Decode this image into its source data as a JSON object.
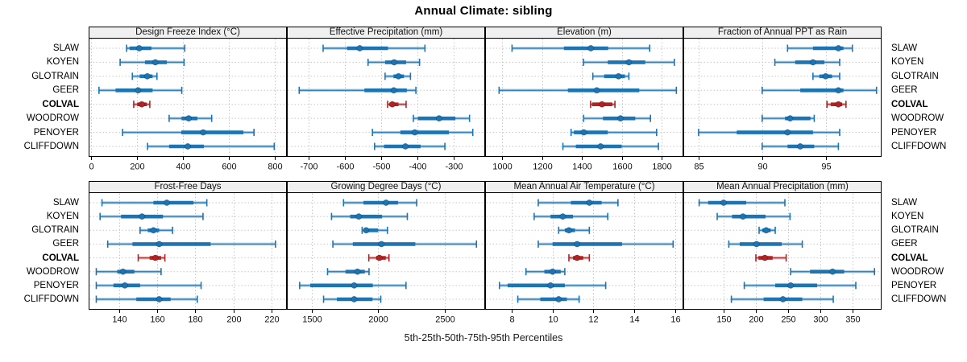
{
  "title": "Annual Climate: sibling",
  "caption": "5th-25th-50th-75th-95th Percentiles",
  "sites": [
    "SLAW",
    "KOYEN",
    "GLOTRAIN",
    "GEER",
    "COLVAL",
    "WOODROW",
    "PENOYER",
    "CLIFFDOWN"
  ],
  "highlight_site": "COLVAL",
  "percentile_labels": [
    "5th",
    "25th",
    "50th",
    "75th",
    "95th"
  ],
  "colors": {
    "series": "#1b74b4",
    "highlight": "#b22222",
    "strip_bg": "#f0f0f0",
    "grid": "#c6c6c6",
    "border": "#000000",
    "text": "#111111"
  },
  "chart_data": {
    "type": "dotplot-interval",
    "layout": {
      "rows": 2,
      "cols": 4
    },
    "note": "values are [p5,p25,p50,p75,p95] per site",
    "panels": [
      {
        "title": "Design Freeze Index (°C)",
        "row": 0,
        "col": 0,
        "xlim": [
          -10,
          852
        ],
        "ticks": [
          0,
          200,
          400,
          600,
          800
        ],
        "series": [
          {
            "site": "SLAW",
            "values": [
              155,
              168,
              210,
              263,
              408
            ]
          },
          {
            "site": "KOYEN",
            "values": [
              127,
              235,
              280,
              330,
              405
            ]
          },
          {
            "site": "GLOTRAIN",
            "values": [
              180,
              212,
              245,
              268,
              287
            ]
          },
          {
            "site": "GEER",
            "values": [
              35,
              107,
              205,
              268,
              395
            ]
          },
          {
            "site": "COLVAL",
            "values": [
              186,
              201,
              221,
              243,
              256
            ]
          },
          {
            "site": "WOODROW",
            "values": [
              340,
              394,
              425,
              463,
              525
            ]
          },
          {
            "site": "PENOYER",
            "values": [
              137,
              393,
              488,
              663,
              709
            ]
          },
          {
            "site": "CLIFFDOWN",
            "values": [
              246,
              340,
              421,
              491,
              797
            ]
          }
        ]
      },
      {
        "title": "Effective Precipitation (mm)",
        "row": 0,
        "col": 1,
        "xlim": [
          -760,
          -213
        ],
        "ticks": [
          -700,
          -600,
          -500,
          -400,
          -300
        ],
        "series": [
          {
            "site": "SLAW",
            "values": [
              -660,
              -594,
              -559,
              -481,
              -379
            ]
          },
          {
            "site": "KOYEN",
            "values": [
              -536,
              -489,
              -464,
              -431,
              -394
            ]
          },
          {
            "site": "GLOTRAIN",
            "values": [
              -489,
              -466,
              -452,
              -437,
              -419
            ]
          },
          {
            "site": "GEER",
            "values": [
              -726,
              -546,
              -465,
              -429,
              -404
            ]
          },
          {
            "site": "COLVAL",
            "values": [
              -482,
              -477,
              -469,
              -452,
              -431
            ]
          },
          {
            "site": "WOODROW",
            "values": [
              -411,
              -398,
              -340,
              -295,
              -256
            ]
          },
          {
            "site": "PENOYER",
            "values": [
              -524,
              -447,
              -407,
              -313,
              -247
            ]
          },
          {
            "site": "CLIFFDOWN",
            "values": [
              -518,
              -492,
              -433,
              -391,
              -324
            ]
          }
        ]
      },
      {
        "title": "Elevation (m)",
        "row": 0,
        "col": 2,
        "xlim": [
          915,
          1909
        ],
        "ticks": [
          1000,
          1200,
          1400,
          1600,
          1800
        ],
        "series": [
          {
            "site": "SLAW",
            "values": [
              1050,
              1310,
              1445,
              1532,
              1740
            ]
          },
          {
            "site": "KOYEN",
            "values": [
              1408,
              1530,
              1636,
              1718,
              1864
            ]
          },
          {
            "site": "GLOTRAIN",
            "values": [
              1455,
              1512,
              1584,
              1616,
              1636
            ]
          },
          {
            "site": "GEER",
            "values": [
              985,
              1330,
              1475,
              1688,
              1874
            ]
          },
          {
            "site": "COLVAL",
            "values": [
              1444,
              1452,
              1501,
              1553,
              1566
            ]
          },
          {
            "site": "WOODROW",
            "values": [
              1409,
              1506,
              1594,
              1668,
              1744
            ]
          },
          {
            "site": "PENOYER",
            "values": [
              1346,
              1360,
              1410,
              1530,
              1775
            ]
          },
          {
            "site": "CLIFFDOWN",
            "values": [
              1305,
              1370,
              1494,
              1600,
              1784
            ]
          }
        ]
      },
      {
        "title": "Fraction of Annual PPT as Rain",
        "row": 0,
        "col": 3,
        "xlim": [
          83.8,
          99.4
        ],
        "ticks": [
          85,
          90,
          95
        ],
        "series": [
          {
            "site": "SLAW",
            "values": [
              92,
              94,
              96,
              96.4,
              97.1
            ]
          },
          {
            "site": "KOYEN",
            "values": [
              91,
              92.6,
              94,
              94.9,
              96.1
            ]
          },
          {
            "site": "GLOTRAIN",
            "values": [
              94,
              94.5,
              95,
              95.5,
              96.1
            ]
          },
          {
            "site": "GEER",
            "values": [
              90,
              93,
              96,
              96.4,
              99
            ]
          },
          {
            "site": "COLVAL",
            "values": [
              95.1,
              95.4,
              96,
              96.3,
              96.6
            ]
          },
          {
            "site": "WOODROW",
            "values": [
              90,
              91.8,
              92.2,
              93.8,
              94.1
            ]
          },
          {
            "site": "PENOYER",
            "values": [
              85,
              88,
              92,
              94,
              96.1
            ]
          },
          {
            "site": "CLIFFDOWN",
            "values": [
              90,
              92,
              93,
              94.1,
              96
            ]
          }
        ]
      },
      {
        "title": "Frost-Free Days",
        "row": 1,
        "col": 0,
        "xlim": [
          124,
          228
        ],
        "ticks": [
          140,
          160,
          180,
          200,
          220
        ],
        "series": [
          {
            "site": "SLAW",
            "values": [
              131,
              158,
              165,
              179,
              186
            ]
          },
          {
            "site": "KOYEN",
            "values": [
              130,
              141,
              152,
              163,
              184
            ]
          },
          {
            "site": "GLOTRAIN",
            "values": [
              151,
              155,
              158,
              161,
              168
            ]
          },
          {
            "site": "GEER",
            "values": [
              134,
              147,
              161,
              188,
              222
            ]
          },
          {
            "site": "COLVAL",
            "values": [
              150,
              156,
              159,
              162,
              164
            ]
          },
          {
            "site": "WOODROW",
            "values": [
              128,
              139,
              142,
              148,
              162
            ]
          },
          {
            "site": "PENOYER",
            "values": [
              128,
              137,
              143,
              151,
              183
            ]
          },
          {
            "site": "CLIFFDOWN",
            "values": [
              128,
              149,
              161,
              167,
              181
            ]
          }
        ]
      },
      {
        "title": "Growing Degree Days (°C)",
        "row": 1,
        "col": 1,
        "xlim": [
          1314,
          2805
        ],
        "ticks": [
          1500,
          2000,
          2500
        ],
        "series": [
          {
            "site": "SLAW",
            "values": [
              1740,
              1890,
              2060,
              2150,
              2290
            ]
          },
          {
            "site": "KOYEN",
            "values": [
              1650,
              1790,
              1855,
              2030,
              2220
            ]
          },
          {
            "site": "GLOTRAIN",
            "values": [
              1880,
              1895,
              1910,
              2000,
              2070
            ]
          },
          {
            "site": "GEER",
            "values": [
              1660,
              1810,
              2025,
              2280,
              2740
            ]
          },
          {
            "site": "COLVAL",
            "values": [
              1930,
              1985,
              2010,
              2058,
              2082
            ]
          },
          {
            "site": "WOODROW",
            "values": [
              1620,
              1755,
              1845,
              1900,
              1932
            ]
          },
          {
            "site": "PENOYER",
            "values": [
              1410,
              1490,
              1820,
              1960,
              2210
            ]
          },
          {
            "site": "CLIFFDOWN",
            "values": [
              1590,
              1690,
              1820,
              1958,
              2020
            ]
          }
        ]
      },
      {
        "title": "Mean Annual Air Temperature (°C)",
        "row": 1,
        "col": 2,
        "xlim": [
          6.7,
          16.4
        ],
        "ticks": [
          8,
          10,
          12,
          14,
          16
        ],
        "series": [
          {
            "site": "SLAW",
            "values": [
              9.3,
              10.9,
              11.8,
              12.4,
              13.2
            ]
          },
          {
            "site": "KOYEN",
            "values": [
              9.1,
              9.9,
              10.5,
              11.0,
              12.7
            ]
          },
          {
            "site": "GLOTRAIN",
            "values": [
              10.3,
              10.6,
              10.8,
              11.1,
              11.8
            ]
          },
          {
            "site": "GEER",
            "values": [
              9.3,
              10.0,
              11.2,
              13.4,
              15.9
            ]
          },
          {
            "site": "COLVAL",
            "values": [
              10.8,
              11.0,
              11.2,
              11.5,
              11.8
            ]
          },
          {
            "site": "WOODROW",
            "values": [
              8.7,
              9.6,
              10.0,
              10.4,
              10.6
            ]
          },
          {
            "site": "PENOYER",
            "values": [
              7.4,
              7.8,
              9.9,
              10.6,
              12.6
            ]
          },
          {
            "site": "CLIFFDOWN",
            "values": [
              8.3,
              9.4,
              10.3,
              10.7,
              11.3
            ]
          }
        ]
      },
      {
        "title": "Mean Annual Precipitation (mm)",
        "row": 1,
        "col": 3,
        "xlim": [
          87.5,
          395
        ],
        "ticks": [
          150,
          200,
          250,
          300,
          350
        ],
        "series": [
          {
            "site": "SLAW",
            "values": [
              112,
              126,
              150,
              185,
              245
            ]
          },
          {
            "site": "KOYEN",
            "values": [
              140,
              163,
              180,
              215,
              253
            ]
          },
          {
            "site": "GLOTRAIN",
            "values": [
              205,
              210,
              216,
              223,
              230
            ]
          },
          {
            "site": "GEER",
            "values": [
              158,
              175,
              201,
              240,
              272
            ]
          },
          {
            "site": "COLVAL",
            "values": [
              200,
              204,
              214,
              226,
              247
            ]
          },
          {
            "site": "WOODROW",
            "values": [
              254,
              284,
              319,
              337,
              384
            ]
          },
          {
            "site": "PENOYER",
            "values": [
              182,
              230,
              254,
              295,
              355
            ]
          },
          {
            "site": "CLIFFDOWN",
            "values": [
              162,
              212,
              242,
              272,
              320
            ]
          }
        ]
      }
    ]
  }
}
